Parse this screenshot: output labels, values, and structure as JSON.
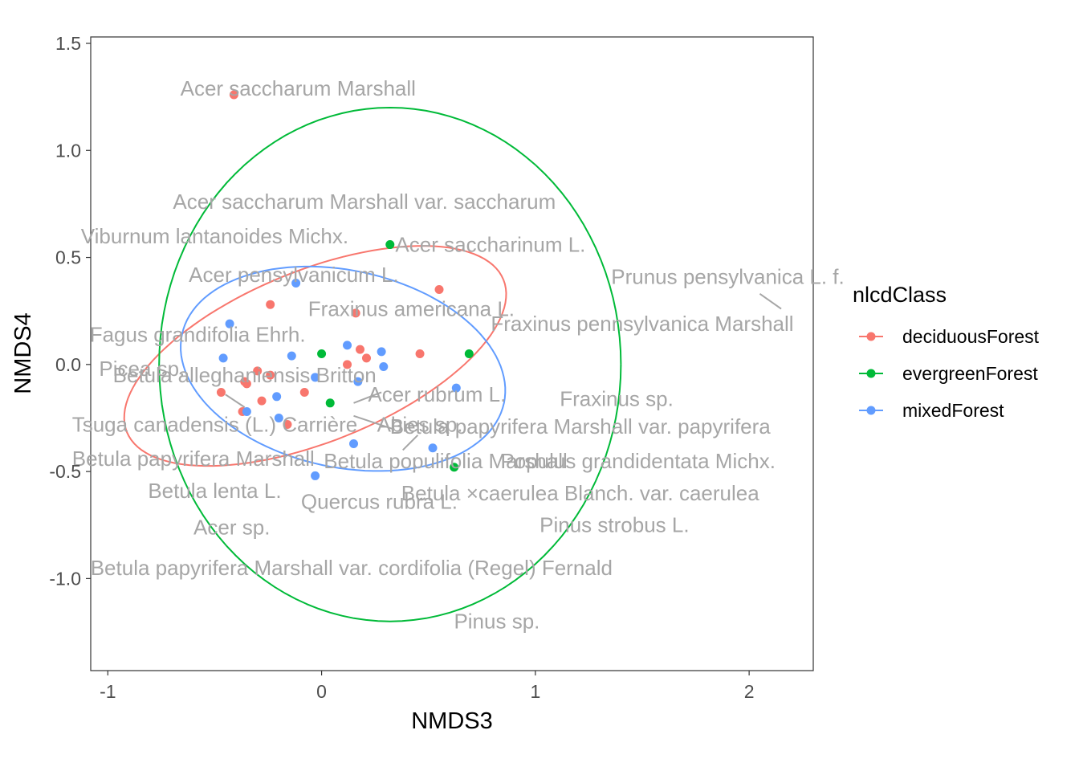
{
  "chart_data": {
    "type": "scatter",
    "xlabel": "NMDS3",
    "ylabel": "NMDS4",
    "xlim": [
      -1.08,
      2.3
    ],
    "ylim": [
      -1.43,
      1.53
    ],
    "x_ticks": [
      -1,
      0,
      1,
      2
    ],
    "x_tick_labels": [
      "-1",
      "0",
      "1",
      "2"
    ],
    "y_ticks": [
      -1.0,
      -0.5,
      0.0,
      0.5,
      1.0,
      1.5
    ],
    "y_tick_labels": [
      "-1.0",
      "-0.5",
      "0.0",
      "0.5",
      "1.0",
      "1.5"
    ],
    "grid": false,
    "legend": {
      "title": "nlcdClass",
      "position": "right",
      "entries": [
        {
          "label": "deciduousForest",
          "color": "#F8766D"
        },
        {
          "label": "evergreenForest",
          "color": "#00BA38"
        },
        {
          "label": "mixedForest",
          "color": "#619CFF"
        }
      ]
    },
    "series": [
      {
        "name": "deciduousForest",
        "color": "#F8766D",
        "points": [
          [
            -0.41,
            1.26
          ],
          [
            -0.24,
            0.28
          ],
          [
            0.16,
            0.24
          ],
          [
            0.55,
            0.35
          ],
          [
            0.46,
            0.05
          ],
          [
            0.18,
            0.07
          ],
          [
            0.21,
            0.03
          ],
          [
            0.12,
            0.0
          ],
          [
            -0.3,
            -0.03
          ],
          [
            -0.24,
            -0.05
          ],
          [
            -0.36,
            -0.08
          ],
          [
            -0.35,
            -0.09
          ],
          [
            -0.47,
            -0.13
          ],
          [
            -0.28,
            -0.17
          ],
          [
            -0.08,
            -0.13
          ],
          [
            -0.37,
            -0.22
          ],
          [
            -0.16,
            -0.28
          ]
        ]
      },
      {
        "name": "evergreenForest",
        "color": "#00BA38",
        "points": [
          [
            0.32,
            0.56
          ],
          [
            0.0,
            0.05
          ],
          [
            0.69,
            0.05
          ],
          [
            0.04,
            -0.18
          ],
          [
            0.62,
            -0.48
          ]
        ]
      },
      {
        "name": "mixedForest",
        "color": "#619CFF",
        "points": [
          [
            -0.12,
            0.38
          ],
          [
            -0.43,
            0.19
          ],
          [
            -0.46,
            0.03
          ],
          [
            -0.14,
            0.04
          ],
          [
            0.12,
            0.09
          ],
          [
            0.28,
            0.06
          ],
          [
            0.29,
            -0.01
          ],
          [
            -0.03,
            -0.06
          ],
          [
            0.17,
            -0.08
          ],
          [
            0.63,
            -0.11
          ],
          [
            -0.21,
            -0.15
          ],
          [
            -0.35,
            -0.22
          ],
          [
            -0.2,
            -0.25
          ],
          [
            0.15,
            -0.37
          ],
          [
            0.52,
            -0.39
          ],
          [
            -0.03,
            -0.52
          ]
        ]
      }
    ],
    "ellipses": [
      {
        "series": "deciduousForest",
        "color": "#F8766D",
        "cx": -0.03,
        "cy": 0.04,
        "rx": 0.95,
        "ry": 0.4,
        "angle_deg": 22
      },
      {
        "series": "evergreenForest",
        "color": "#00BA38",
        "cx": 0.32,
        "cy": 0.0,
        "rx": 1.08,
        "ry": 1.2,
        "angle_deg": 0
      },
      {
        "series": "mixedForest",
        "color": "#619CFF",
        "cx": 0.1,
        "cy": -0.02,
        "rx": 0.77,
        "ry": 0.46,
        "angle_deg": -12
      }
    ],
    "annotations": [
      {
        "text": "Acer saccharum Marshall",
        "x": -0.11,
        "y": 1.29
      },
      {
        "text": "Acer saccharum Marshall var. saccharum",
        "x": 0.2,
        "y": 0.76
      },
      {
        "text": "Viburnum lantanoides Michx.",
        "x": -0.5,
        "y": 0.6
      },
      {
        "text": "Acer saccharinum L.",
        "x": 0.79,
        "y": 0.56
      },
      {
        "text": "Acer pensylvanicum L.",
        "x": -0.13,
        "y": 0.42
      },
      {
        "text": "Prunus pensylvanica L. f.",
        "x": 1.9,
        "y": 0.41
      },
      {
        "text": "Fraxinus americana L.",
        "x": 0.42,
        "y": 0.26
      },
      {
        "text": "Fraxinus pennsylvanica Marshall",
        "x": 1.5,
        "y": 0.19
      },
      {
        "text": "Fagus grandifolia Ehrh.",
        "x": -0.58,
        "y": 0.14
      },
      {
        "text": "Picea sp.",
        "x": -0.84,
        "y": -0.02
      },
      {
        "text": "Betula alleghaniensis Britton",
        "x": -0.36,
        "y": -0.05
      },
      {
        "text": "Acer rubrum L.",
        "x": 0.54,
        "y": -0.14
      },
      {
        "text": "Fraxinus sp.",
        "x": 1.38,
        "y": -0.16
      },
      {
        "text": "Tsuga canadensis (L.) Carrière",
        "x": -0.5,
        "y": -0.28
      },
      {
        "text": "Abies sp.",
        "x": 0.46,
        "y": -0.28
      },
      {
        "text": "Betula papyrifera Marshall var. papyrifera",
        "x": 1.21,
        "y": -0.29
      },
      {
        "text": "Betula papyrifera Marshall",
        "x": -0.6,
        "y": -0.44
      },
      {
        "text": "Betula populifolia Marshall",
        "x": 0.58,
        "y": -0.45
      },
      {
        "text": "Populus grandidentata Michx.",
        "x": 1.48,
        "y": -0.45
      },
      {
        "text": "Betula lenta L.",
        "x": -0.5,
        "y": -0.59
      },
      {
        "text": "Betula ×caerulea Blanch. var. caerulea",
        "x": 1.21,
        "y": -0.6
      },
      {
        "text": "Quercus rubra L.",
        "x": 0.27,
        "y": -0.64
      },
      {
        "text": "Acer sp.",
        "x": -0.42,
        "y": -0.76
      },
      {
        "text": "Pinus strobus L.",
        "x": 1.37,
        "y": -0.75
      },
      {
        "text": "Betula papyrifera Marshall var. cordifolia (Regel) Fernald",
        "x": 0.14,
        "y": -0.95
      },
      {
        "text": "Pinus sp.",
        "x": 0.82,
        "y": -1.2
      }
    ],
    "leader_lines": [
      [
        2.15,
        0.26,
        2.05,
        0.33
      ],
      [
        0.15,
        -0.18,
        0.28,
        -0.13
      ],
      [
        0.15,
        -0.24,
        0.33,
        -0.3
      ],
      [
        0.38,
        -0.4,
        0.45,
        -0.33
      ],
      [
        -0.45,
        -0.14,
        -0.36,
        -0.2
      ]
    ]
  }
}
